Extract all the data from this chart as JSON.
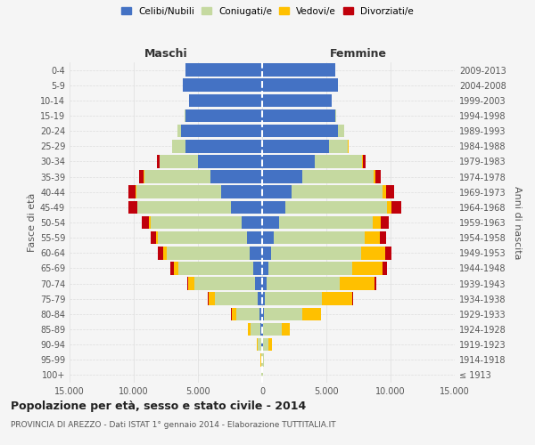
{
  "age_groups": [
    "100+",
    "95-99",
    "90-94",
    "85-89",
    "80-84",
    "75-79",
    "70-74",
    "65-69",
    "60-64",
    "55-59",
    "50-54",
    "45-49",
    "40-44",
    "35-39",
    "30-34",
    "25-29",
    "20-24",
    "15-19",
    "10-14",
    "5-9",
    "0-4"
  ],
  "birth_years": [
    "≤ 1913",
    "1914-1918",
    "1919-1923",
    "1924-1928",
    "1929-1933",
    "1934-1938",
    "1939-1943",
    "1944-1948",
    "1949-1953",
    "1954-1958",
    "1959-1963",
    "1964-1968",
    "1969-1973",
    "1974-1978",
    "1979-1983",
    "1984-1988",
    "1989-1993",
    "1994-1998",
    "1999-2003",
    "2004-2008",
    "2009-2013"
  ],
  "males": {
    "celibi": [
      15,
      25,
      60,
      120,
      220,
      380,
      550,
      700,
      950,
      1200,
      1600,
      2400,
      3200,
      4000,
      5000,
      6000,
      6300,
      6000,
      5700,
      6200,
      6000
    ],
    "coniugati": [
      25,
      70,
      280,
      800,
      1800,
      3300,
      4700,
      5800,
      6500,
      6900,
      7100,
      7300,
      6600,
      5200,
      3000,
      1000,
      280,
      30,
      10,
      5,
      5
    ],
    "vedovi": [
      8,
      25,
      90,
      180,
      350,
      480,
      480,
      380,
      280,
      180,
      90,
      50,
      40,
      25,
      15,
      8,
      3,
      0,
      0,
      0,
      0
    ],
    "divorziati": [
      4,
      8,
      15,
      25,
      40,
      70,
      130,
      280,
      380,
      430,
      580,
      680,
      580,
      380,
      180,
      40,
      15,
      4,
      0,
      0,
      0
    ]
  },
  "females": {
    "nubili": [
      15,
      25,
      60,
      100,
      150,
      220,
      330,
      500,
      700,
      900,
      1300,
      1800,
      2300,
      3100,
      4100,
      5200,
      5900,
      5700,
      5400,
      5900,
      5700
    ],
    "coniugate": [
      25,
      80,
      450,
      1400,
      3000,
      4400,
      5700,
      6500,
      7000,
      7100,
      7300,
      7900,
      7100,
      5600,
      3700,
      1500,
      500,
      60,
      15,
      5,
      5
    ],
    "vedove": [
      8,
      45,
      230,
      650,
      1400,
      2400,
      2700,
      2400,
      1900,
      1200,
      650,
      380,
      230,
      130,
      50,
      15,
      8,
      3,
      0,
      0,
      0
    ],
    "divorziate": [
      4,
      8,
      15,
      35,
      55,
      90,
      180,
      320,
      480,
      480,
      620,
      780,
      620,
      420,
      180,
      50,
      15,
      4,
      0,
      0,
      0
    ]
  },
  "colors": {
    "celibi": "#4472c4",
    "coniugati": "#c5d9a0",
    "vedovi": "#ffc000",
    "divorziati": "#c0000b"
  },
  "title": "Popolazione per età, sesso e stato civile - 2014",
  "subtitle": "PROVINCIA DI AREZZO - Dati ISTAT 1° gennaio 2014 - Elaborazione TUTTITALIA.IT",
  "xlabel_left": "Maschi",
  "xlabel_right": "Femmine",
  "ylabel_left": "Fasce di età",
  "ylabel_right": "Anni di nascita",
  "xlim": 15000,
  "legend_labels": [
    "Celibi/Nubili",
    "Coniugati/e",
    "Vedovi/e",
    "Divorziati/e"
  ],
  "bg_color": "#f5f5f5",
  "grid_color": "#dddddd"
}
